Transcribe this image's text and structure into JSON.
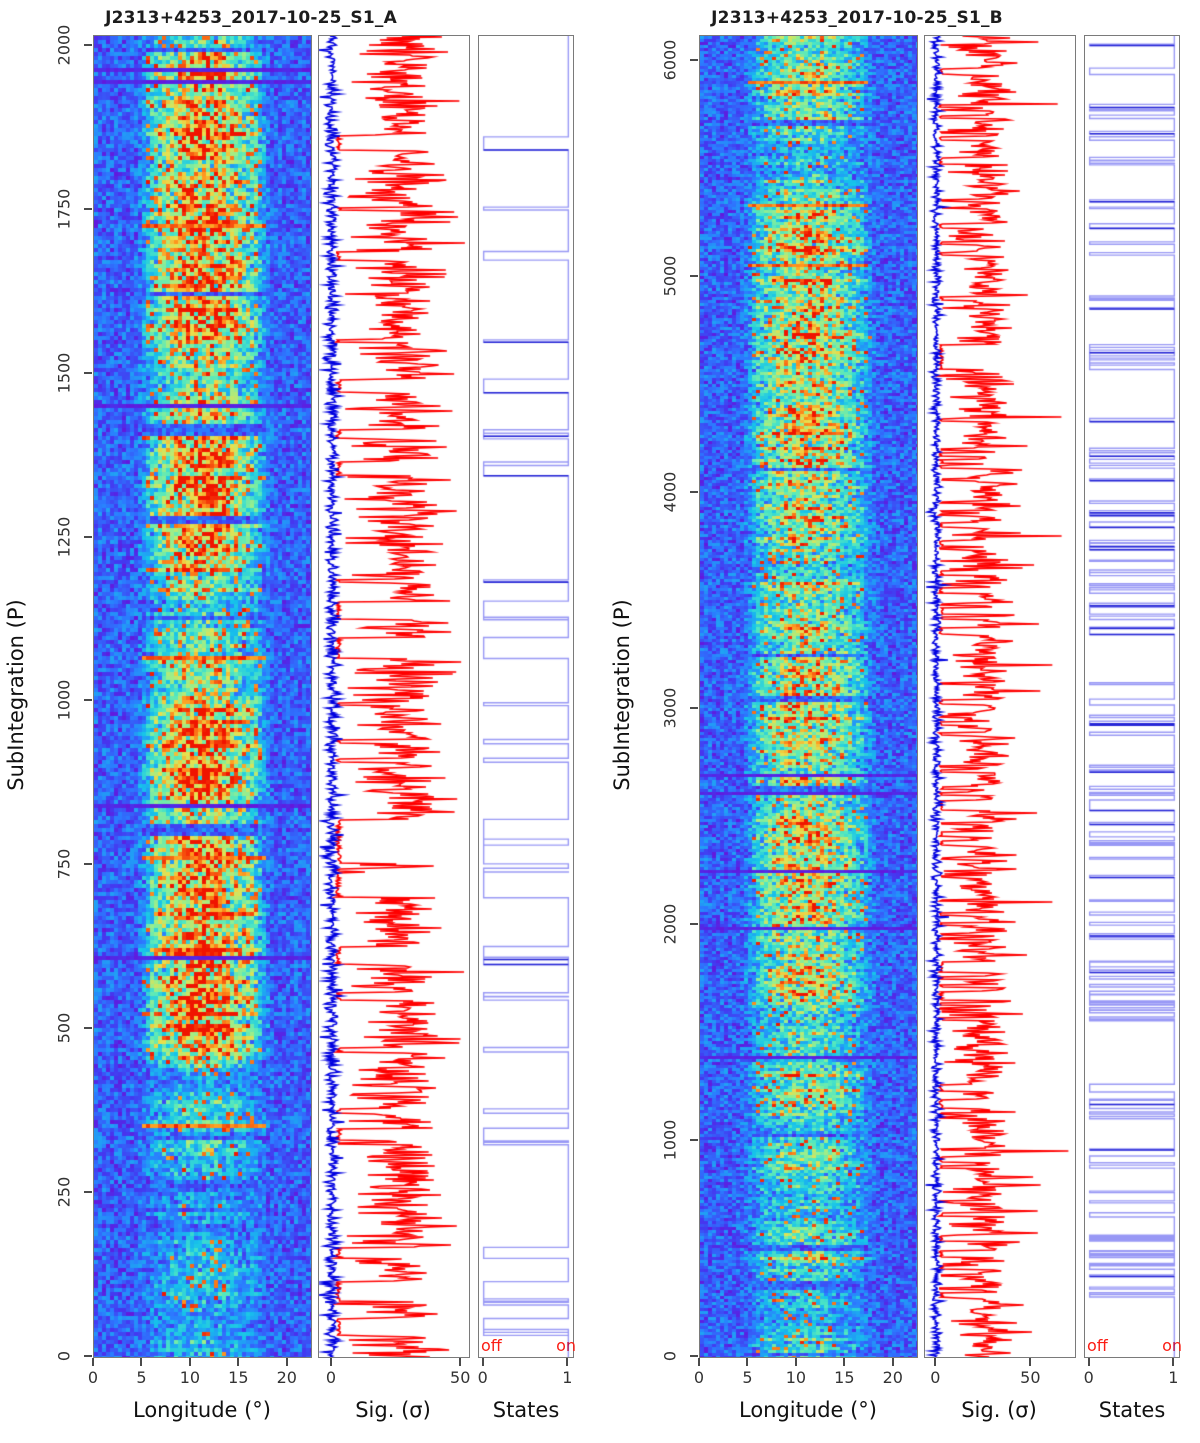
{
  "chart_data": [
    {
      "panel": "A",
      "title": "J2313+4253_2017-10-25_S1_A",
      "ylabel": "SubIntegration (P)",
      "y_range": [
        0,
        2015
      ],
      "y_ticks": [
        0,
        250,
        500,
        750,
        1000,
        1250,
        1500,
        1750,
        2000
      ],
      "subplots": [
        {
          "kind": "heatmap",
          "name": "pulse-stack",
          "xlabel": "Longitude (°)",
          "x_ticks": [
            0,
            5,
            10,
            15,
            20
          ],
          "x_range": [
            0,
            22.4
          ],
          "colormap": "rainbow",
          "pulse_window_deg": [
            5.5,
            17.5
          ],
          "pulse_center_deg": 11.3,
          "description": "Single-pulse stack: blue/purple off-pulse noise with bright green-yellow-red emission band between ~5° and ~17° longitude; occasional blank (null) and RFI rows."
        },
        {
          "kind": "line",
          "name": "significance",
          "xlabel": "Sig. (σ)",
          "x_ticks": [
            0,
            50
          ],
          "x_range": [
            -5,
            53
          ],
          "series": [
            {
              "name": "off-pulse significance",
              "color": "#0000e0",
              "mean": 0,
              "sd": 1.3
            },
            {
              "name": "on-pulse significance",
              "color": "#ff0000",
              "mean": 27,
              "sd": 8,
              "spike_max": 52,
              "null_value": 1.5
            }
          ]
        },
        {
          "kind": "step",
          "name": "states",
          "xlabel": "States",
          "x_ticks": [
            0,
            1
          ],
          "x_range": [
            -0.055,
            1.055
          ],
          "state_labels": {
            "off": "off",
            "on": "on"
          },
          "label_color": "#fb1d14",
          "line_color": "#0a0ae6",
          "dominant_state": "on",
          "off_runs": 34
        }
      ]
    },
    {
      "panel": "B",
      "title": "J2313+4253_2017-10-25_S1_B",
      "ylabel": "SubIntegration (P)",
      "y_range": [
        0,
        6115
      ],
      "y_ticks": [
        0,
        1000,
        2000,
        3000,
        4000,
        5000,
        6000
      ],
      "subplots": [
        {
          "kind": "heatmap",
          "name": "pulse-stack",
          "xlabel": "Longitude (°)",
          "x_ticks": [
            0,
            5,
            10,
            15,
            20
          ],
          "x_range": [
            0,
            22.4
          ],
          "colormap": "rainbow",
          "pulse_window_deg": [
            5.5,
            17.5
          ],
          "pulse_center_deg": 11.0,
          "description": "Single-pulse stack with ~6100 subintegrations: blue off-pulse noise, pale-green emission band ~5°-17° with red speckles."
        },
        {
          "kind": "line",
          "name": "significance",
          "xlabel": "Sig. (σ)",
          "x_ticks": [
            0,
            50
          ],
          "x_range": [
            -6,
            73
          ],
          "series": [
            {
              "name": "off-pulse significance",
              "color": "#0000e0",
              "mean": 0,
              "sd": 1.2
            },
            {
              "name": "on-pulse significance",
              "color": "#ff0000",
              "mean": 26,
              "sd": 7,
              "spike_max": 72,
              "null_value": 1.5
            }
          ]
        },
        {
          "kind": "step",
          "name": "states",
          "xlabel": "States",
          "x_ticks": [
            0,
            1
          ],
          "x_range": [
            -0.055,
            1.055
          ],
          "state_labels": {
            "off": "off",
            "on": "on"
          },
          "label_color": "#fb1d14",
          "line_color": "#0a0ae6",
          "dominant_state": "on",
          "off_runs": 112
        }
      ]
    }
  ]
}
